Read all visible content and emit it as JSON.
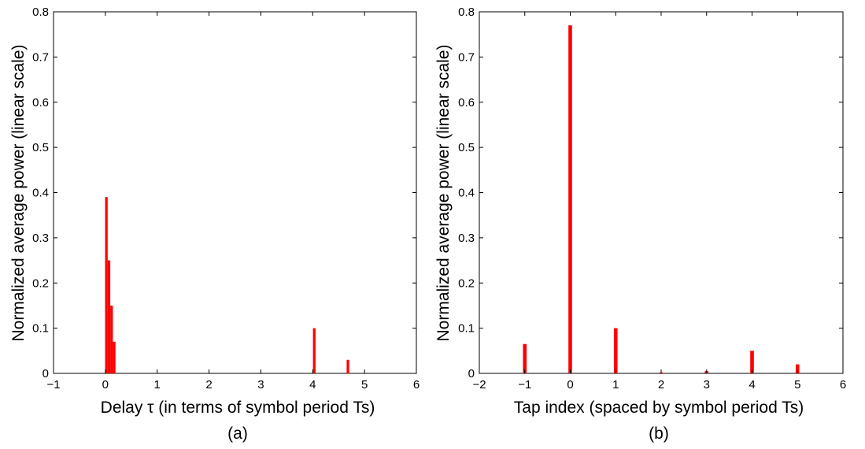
{
  "chart_data": [
    {
      "type": "bar",
      "caption": "(a)",
      "xlabel": "Delay τ (in terms of symbol period Ts)",
      "ylabel": "Normalized average power (linear scale)",
      "xlim": [
        -1,
        6
      ],
      "ylim": [
        0,
        0.8
      ],
      "xticks": [
        "−1",
        "0",
        "1",
        "2",
        "3",
        "4",
        "5",
        "6"
      ],
      "yticks": [
        "0",
        "0.1",
        "0.2",
        "0.3",
        "0.4",
        "0.5",
        "0.6",
        "0.7",
        "0.8"
      ],
      "bar_width": 0.05,
      "x": [
        0.02,
        0.07,
        0.12,
        0.17,
        4.03,
        4.68
      ],
      "values": [
        0.39,
        0.25,
        0.15,
        0.07,
        0.1,
        0.03
      ],
      "color": "#ff0000",
      "grid": false
    },
    {
      "type": "bar",
      "caption": "(b)",
      "xlabel": "Tap index (spaced by symbol period Ts)",
      "ylabel": "Normalized average power (linear scale)",
      "xlim": [
        -2,
        6
      ],
      "ylim": [
        0,
        0.8
      ],
      "xticks": [
        "−2",
        "−1",
        "0",
        "1",
        "2",
        "3",
        "4",
        "5",
        "6"
      ],
      "yticks": [
        "0",
        "0.1",
        "0.2",
        "0.3",
        "0.4",
        "0.5",
        "0.6",
        "0.7",
        "0.8"
      ],
      "bar_width": 0.08,
      "x": [
        -1,
        0,
        1,
        2,
        3,
        4,
        5
      ],
      "values": [
        0.065,
        0.77,
        0.1,
        0.002,
        0.005,
        0.05,
        0.02
      ],
      "color": "#ff0000",
      "grid": false
    }
  ]
}
